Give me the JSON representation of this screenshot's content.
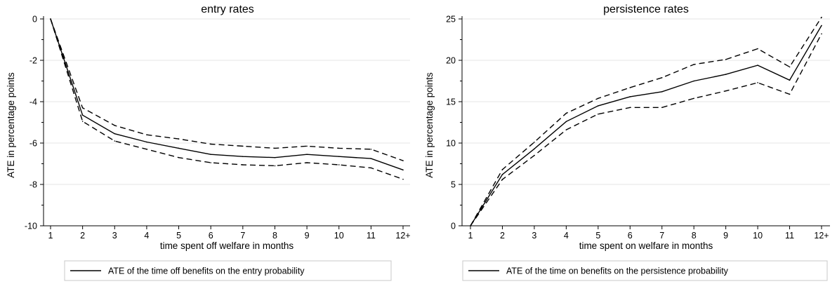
{
  "chart_data": [
    {
      "type": "line",
      "title": "entry rates",
      "xlabel": "time spent off welfare in months",
      "ylabel": "ATE in percentage points",
      "categories": [
        "1",
        "2",
        "3",
        "4",
        "5",
        "6",
        "7",
        "8",
        "9",
        "10",
        "11",
        "12+"
      ],
      "ylim": [
        -10,
        0
      ],
      "yticks": [
        0,
        -2,
        -4,
        -6,
        -8,
        -10
      ],
      "grid": true,
      "series": [
        {
          "role": "estimate",
          "name": "ATE of the time off benefits on the entry probability",
          "values": [
            0,
            -4.65,
            -5.55,
            -5.95,
            -6.25,
            -6.55,
            -6.65,
            -6.7,
            -6.55,
            -6.65,
            -6.75,
            -7.3
          ]
        },
        {
          "role": "upper_ci",
          "values": [
            0,
            -4.3,
            -5.15,
            -5.6,
            -5.8,
            -6.05,
            -6.15,
            -6.25,
            -6.15,
            -6.25,
            -6.3,
            -6.85
          ]
        },
        {
          "role": "lower_ci",
          "values": [
            0,
            -4.95,
            -5.9,
            -6.3,
            -6.7,
            -6.95,
            -7.05,
            -7.1,
            -6.95,
            -7.05,
            -7.2,
            -7.75
          ]
        }
      ],
      "legend": "bottom"
    },
    {
      "type": "line",
      "title": "persistence rates",
      "xlabel": "time spent on welfare in months",
      "ylabel": "ATE in percentage points",
      "categories": [
        "1",
        "2",
        "3",
        "4",
        "5",
        "6",
        "7",
        "8",
        "9",
        "10",
        "11",
        "12+"
      ],
      "ylim": [
        0,
        25
      ],
      "yticks": [
        0,
        5,
        10,
        15,
        20,
        25
      ],
      "grid": true,
      "series": [
        {
          "role": "estimate",
          "name": "ATE of the time on benefits on the persistence probability",
          "values": [
            0,
            6.2,
            9.3,
            12.6,
            14.5,
            15.6,
            16.2,
            17.5,
            18.3,
            19.4,
            17.6,
            24.2
          ]
        },
        {
          "role": "upper_ci",
          "values": [
            0,
            6.8,
            10.1,
            13.6,
            15.4,
            16.7,
            17.9,
            19.5,
            20.1,
            21.4,
            19.2,
            25.2
          ]
        },
        {
          "role": "lower_ci",
          "values": [
            0,
            5.6,
            8.5,
            11.6,
            13.5,
            14.3,
            14.3,
            15.4,
            16.3,
            17.3,
            15.9,
            23.2
          ]
        }
      ],
      "legend": "bottom"
    }
  ]
}
